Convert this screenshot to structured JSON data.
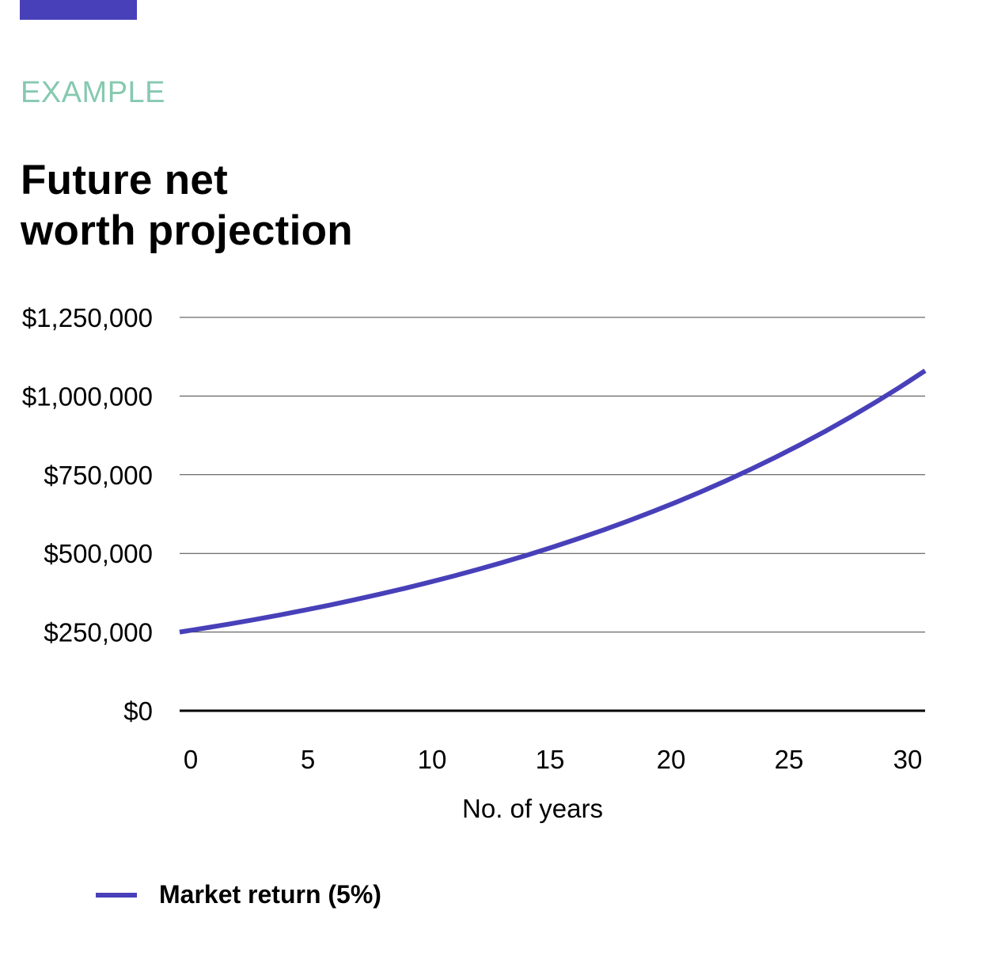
{
  "header": {
    "accent_color": "#4840b9",
    "eyebrow": "EXAMPLE",
    "eyebrow_color": "#86c9b0",
    "title_line1": "Future net",
    "title_line2": "worth projection"
  },
  "legend": {
    "items": [
      {
        "label": "Market return (5%)",
        "color": "#4840b9"
      }
    ]
  },
  "chart_data": {
    "type": "line",
    "title": "Future net worth projection",
    "xlabel": "No. of years",
    "ylabel": "",
    "x_ticks": [
      "0",
      "5",
      "10",
      "15",
      "20",
      "25",
      "30"
    ],
    "y_ticks": [
      "$0",
      "$250,000",
      "$500,000",
      "$750,000",
      "$1,000,000",
      "$1,250,000"
    ],
    "xlim": [
      0,
      30
    ],
    "ylim": [
      0,
      1250000
    ],
    "grid": "horizontal",
    "legend_position": "bottom-left",
    "x": [
      0,
      1,
      2,
      3,
      4,
      5,
      6,
      7,
      8,
      9,
      10,
      11,
      12,
      13,
      14,
      15,
      16,
      17,
      18,
      19,
      20,
      21,
      22,
      23,
      24,
      25,
      26,
      27,
      28,
      29,
      30
    ],
    "series": [
      {
        "name": "Market return (5%)",
        "color": "#4840b9",
        "values": [
          250000,
          262500,
          275625,
          289406,
          303877,
          319070,
          335024,
          351775,
          369364,
          387832,
          407224,
          427585,
          448964,
          471412,
          494983,
          519732,
          545719,
          573005,
          601655,
          631738,
          663324,
          696491,
          731315,
          767881,
          806275,
          846589,
          888918,
          933364,
          980032,
          1029034,
          1080486
        ]
      }
    ]
  }
}
